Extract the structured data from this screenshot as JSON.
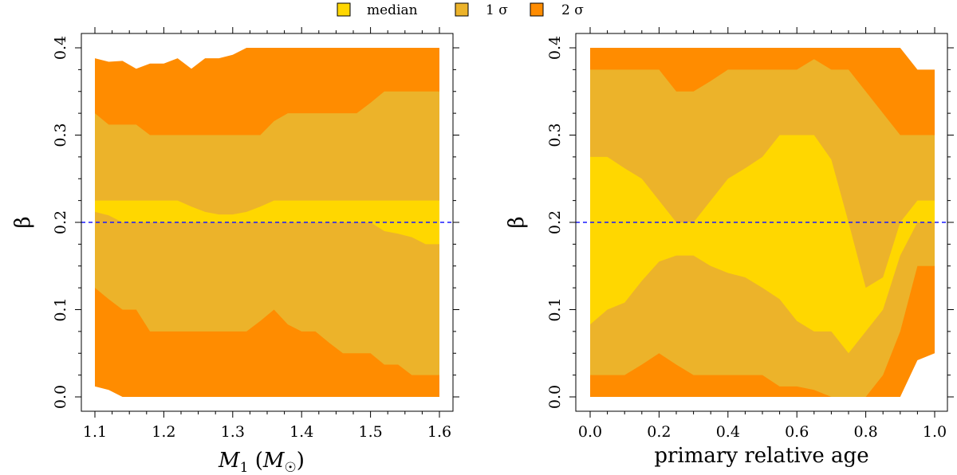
{
  "legend": [
    {
      "label": "median",
      "color": "#FFD700"
    },
    {
      "label": "1 σ",
      "color": "#ECB32A"
    },
    {
      "label": "2 σ",
      "color": "#FF8C00"
    }
  ],
  "reference_line": {
    "value": 0.2,
    "color": "#1a1aff",
    "style": "dashed"
  },
  "chart_data": [
    {
      "type": "area",
      "ylabel": "β",
      "xlabel": "M₁ (M☉)",
      "xlabel_parts": {
        "symbol": "M",
        "subscript": "1",
        "open": " (",
        "unit": "M",
        "close": ")",
        "unit_sub_glyph": "☉"
      },
      "xlim": [
        1.1,
        1.6
      ],
      "ylim": [
        0.0,
        0.4
      ],
      "xticks": [
        "1.1",
        "1.2",
        "1.3",
        "1.4",
        "1.5",
        "1.6"
      ],
      "xtick_values": [
        1.1,
        1.2,
        1.3,
        1.4,
        1.5,
        1.6
      ],
      "yticks": [
        "0.0",
        "0.1",
        "0.2",
        "0.3",
        "0.4"
      ],
      "ytick_values": [
        0.0,
        0.1,
        0.2,
        0.3,
        0.4
      ],
      "x": [
        1.1,
        1.12,
        1.14,
        1.16,
        1.18,
        1.2,
        1.22,
        1.24,
        1.26,
        1.28,
        1.3,
        1.32,
        1.34,
        1.36,
        1.38,
        1.4,
        1.42,
        1.44,
        1.46,
        1.48,
        1.5,
        1.52,
        1.54,
        1.56,
        1.58,
        1.6
      ],
      "bands": [
        {
          "name": "2 σ",
          "lower": [
            0.012,
            0.008,
            0.0,
            0.0,
            0.0,
            0.0,
            0.0,
            0.0,
            0.0,
            0.0,
            0.0,
            0.0,
            0.0,
            0.0,
            0.0,
            0.0,
            0.0,
            0.0,
            0.0,
            0.0,
            0.0,
            0.0,
            0.0,
            0.0,
            0.0,
            0.0
          ],
          "upper": [
            0.388,
            0.384,
            0.385,
            0.376,
            0.382,
            0.382,
            0.388,
            0.376,
            0.388,
            0.388,
            0.392,
            0.4,
            0.4,
            0.4,
            0.4,
            0.4,
            0.4,
            0.4,
            0.4,
            0.4,
            0.4,
            0.4,
            0.4,
            0.4,
            0.4,
            0.4
          ]
        },
        {
          "name": "1 σ",
          "lower": [
            0.125,
            0.112,
            0.1,
            0.1,
            0.075,
            0.075,
            0.075,
            0.075,
            0.075,
            0.075,
            0.075,
            0.075,
            0.087,
            0.1,
            0.083,
            0.075,
            0.075,
            0.062,
            0.05,
            0.05,
            0.05,
            0.037,
            0.037,
            0.025,
            0.025,
            0.025
          ],
          "upper": [
            0.325,
            0.312,
            0.312,
            0.312,
            0.3,
            0.3,
            0.3,
            0.3,
            0.3,
            0.3,
            0.3,
            0.3,
            0.3,
            0.316,
            0.325,
            0.325,
            0.325,
            0.325,
            0.325,
            0.325,
            0.337,
            0.35,
            0.35,
            0.35,
            0.35,
            0.35
          ]
        },
        {
          "name": "median",
          "lower": [
            0.212,
            0.208,
            0.2,
            0.2,
            0.2,
            0.2,
            0.2,
            0.2,
            0.2,
            0.2,
            0.2,
            0.2,
            0.2,
            0.2,
            0.2,
            0.2,
            0.2,
            0.2,
            0.2,
            0.2,
            0.2,
            0.19,
            0.187,
            0.183,
            0.175,
            0.175
          ],
          "upper": [
            0.225,
            0.225,
            0.225,
            0.225,
            0.225,
            0.225,
            0.225,
            0.218,
            0.212,
            0.209,
            0.209,
            0.212,
            0.218,
            0.225,
            0.225,
            0.225,
            0.225,
            0.225,
            0.225,
            0.225,
            0.225,
            0.225,
            0.225,
            0.225,
            0.225,
            0.225
          ]
        }
      ]
    },
    {
      "type": "area",
      "ylabel": "β",
      "xlabel": "primary relative age",
      "xlim": [
        0.0,
        1.0
      ],
      "ylim": [
        0.0,
        0.4
      ],
      "xticks": [
        "0.0",
        "0.2",
        "0.4",
        "0.6",
        "0.8",
        "1.0"
      ],
      "xtick_values": [
        0.0,
        0.2,
        0.4,
        0.6,
        0.8,
        1.0
      ],
      "yticks": [
        "0.0",
        "0.1",
        "0.2",
        "0.3",
        "0.4"
      ],
      "ytick_values": [
        0.0,
        0.1,
        0.2,
        0.3,
        0.4
      ],
      "x": [
        0.0,
        0.05,
        0.1,
        0.15,
        0.2,
        0.25,
        0.3,
        0.35,
        0.4,
        0.45,
        0.5,
        0.55,
        0.6,
        0.65,
        0.7,
        0.75,
        0.8,
        0.85,
        0.9,
        0.95,
        1.0
      ],
      "bands": [
        {
          "name": "2 σ",
          "lower": [
            0.0,
            0.0,
            0.0,
            0.0,
            0.0,
            0.0,
            0.0,
            0.0,
            0.0,
            0.0,
            0.0,
            0.0,
            0.0,
            0.0,
            0.0,
            0.0,
            0.0,
            0.0,
            0.0,
            0.042,
            0.05
          ],
          "upper": [
            0.4,
            0.4,
            0.4,
            0.4,
            0.4,
            0.4,
            0.4,
            0.4,
            0.4,
            0.4,
            0.4,
            0.4,
            0.4,
            0.4,
            0.4,
            0.4,
            0.4,
            0.4,
            0.4,
            0.375,
            0.375
          ]
        },
        {
          "name": "1 σ",
          "lower": [
            0.025,
            0.025,
            0.025,
            0.037,
            0.05,
            0.037,
            0.025,
            0.025,
            0.025,
            0.025,
            0.025,
            0.012,
            0.012,
            0.008,
            0.0,
            0.0,
            0.0,
            0.025,
            0.075,
            0.15,
            0.15
          ],
          "upper": [
            0.375,
            0.375,
            0.375,
            0.375,
            0.375,
            0.35,
            0.35,
            0.362,
            0.375,
            0.375,
            0.375,
            0.375,
            0.375,
            0.387,
            0.375,
            0.375,
            0.35,
            0.325,
            0.3,
            0.3,
            0.3
          ]
        },
        {
          "name": "median",
          "lower": [
            0.083,
            0.1,
            0.108,
            0.133,
            0.155,
            0.162,
            0.162,
            0.15,
            0.142,
            0.137,
            0.125,
            0.112,
            0.087,
            0.075,
            0.075,
            0.05,
            0.075,
            0.1,
            0.162,
            0.2,
            0.2
          ],
          "upper": [
            0.275,
            0.275,
            0.262,
            0.25,
            0.225,
            0.2,
            0.2,
            0.225,
            0.25,
            0.262,
            0.275,
            0.3,
            0.3,
            0.3,
            0.272,
            0.2,
            0.125,
            0.137,
            0.2,
            0.225,
            0.225
          ]
        }
      ]
    }
  ]
}
